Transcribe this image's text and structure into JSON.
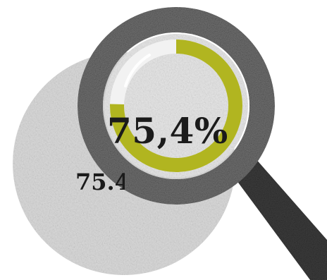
{
  "percentage": {
    "value": 75.4,
    "unit": "%",
    "small_text": "75.4",
    "large_text": "75,4%"
  },
  "colors": {
    "ring": "#b1b520",
    "ring_track": "#ffffff",
    "background_circle": "#dcdcdc",
    "text": "#1b1b1b",
    "lens_frame": "#6a6a6a",
    "handle": "#3a3a3a"
  },
  "icons": {
    "magnifier": "magnifying-glass-icon"
  }
}
